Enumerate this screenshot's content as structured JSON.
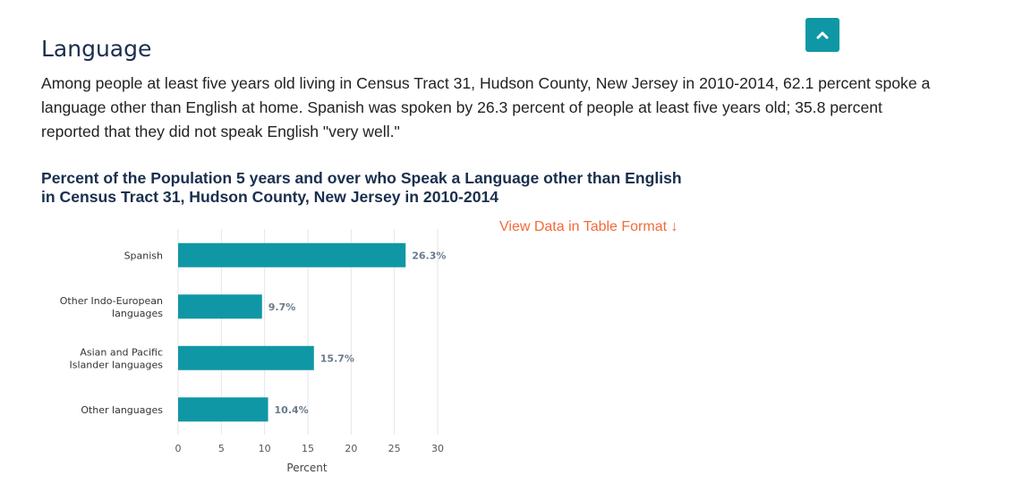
{
  "section": {
    "title": "Language"
  },
  "top_button": {
    "icon": "chevron-up-icon",
    "color": "#0f97a6"
  },
  "intro": {
    "text": "Among people at least five years old living in Census Tract 31, Hudson County, New Jersey in 2010-2014, 62.1 percent spoke a language other than English at home. Spanish was spoken by 26.3 percent of people at least five years old; 35.8 percent reported that they did not speak English \"very well.\""
  },
  "table_link": {
    "label": "View Data in Table Format ↓",
    "color": "#f26b3a"
  },
  "chart_data": {
    "type": "bar",
    "orientation": "horizontal",
    "title": "Percent of the Population 5 years and over who Speak a Language other than English in Census Tract 31, Hudson County, New Jersey in 2010-2014",
    "categories": [
      [
        "Spanish"
      ],
      [
        "Other Indo-European",
        "languages"
      ],
      [
        "Asian and Pacific",
        "Islander languages"
      ],
      [
        "Other languages"
      ]
    ],
    "values": [
      26.3,
      9.7,
      15.7,
      10.4
    ],
    "data_labels": [
      "26.3%",
      "9.7%",
      "15.7%",
      "10.4%"
    ],
    "xlabel": "Percent",
    "xlim": [
      0,
      30
    ],
    "xticks": [
      0,
      5,
      10,
      15,
      20,
      25,
      30
    ],
    "grid": true,
    "bar_color": "#0f97a6"
  }
}
